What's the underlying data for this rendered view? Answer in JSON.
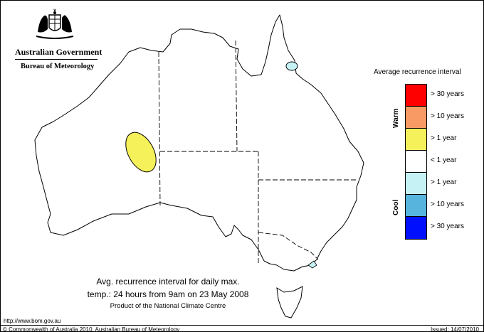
{
  "branding": {
    "government": "Australian Government",
    "bureau": "Bureau of Meteorology"
  },
  "legend": {
    "title": "Average recurrence interval",
    "warm_label": "Warm",
    "cool_label": "Cool",
    "classes": [
      {
        "label": "> 30 years",
        "color": "#ff0000",
        "group": "Warm"
      },
      {
        "label": "> 10 years",
        "color": "#f79a63",
        "group": "Warm"
      },
      {
        "label": "> 1 year",
        "color": "#f5f15a",
        "group": "Warm"
      },
      {
        "label": "< 1 year",
        "color": "#ffffff",
        "group": "none"
      },
      {
        "label": "> 1 year",
        "color": "#c6f2f5",
        "group": "Cool"
      },
      {
        "label": "> 10 years",
        "color": "#57b4dd",
        "group": "Cool"
      },
      {
        "label": "> 30 years",
        "color": "#0010ff",
        "group": "Cool"
      }
    ]
  },
  "map": {
    "region": "Australia",
    "highlighted_areas": [
      {
        "class": "> 1 year (warm)",
        "color": "#f5f15a",
        "location": "Western Australia interior"
      },
      {
        "class": "> 1 year (cool)",
        "color": "#c6f2f5",
        "location": "North Queensland"
      },
      {
        "class": "> 1 year (cool)",
        "color": "#c6f2f5",
        "location": "East Gippsland, Victoria"
      }
    ]
  },
  "caption": {
    "line1": "Avg. recurrence interval for daily max.",
    "line2": "temp.: 24 hours from 9am on 23 May 2008",
    "line3": "Product of the National Climate Centre"
  },
  "footer": {
    "url": "http://www.bom.gov.au",
    "copyright": "© Commonwealth of Australia 2010, Australian Bureau of Meteorology",
    "issued": "Issued: 14/07/2010"
  }
}
